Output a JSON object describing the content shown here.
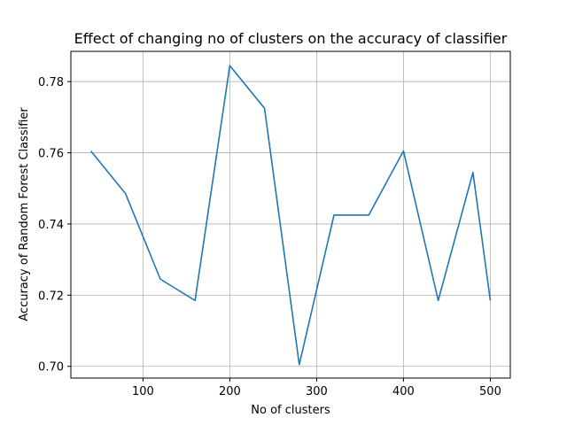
{
  "chart_data": {
    "type": "line",
    "title": "Effect of changing no of clusters on the accuracy of classifier",
    "xlabel": "No of clusters",
    "ylabel": "Accuracy of Random Forest Classifier",
    "x": [
      40,
      80,
      120,
      160,
      200,
      240,
      280,
      320,
      360,
      400,
      440,
      480,
      500
    ],
    "series": [
      {
        "values": [
          0.7605,
          0.7485,
          0.7245,
          0.7185,
          0.7845,
          0.7725,
          0.7005,
          0.7425,
          0.7425,
          0.7605,
          0.7185,
          0.7545,
          0.7185
        ]
      }
    ],
    "xlim": [
      17,
      523
    ],
    "ylim": [
      0.6967,
      0.7885
    ],
    "xticks": [
      100,
      200,
      300,
      400,
      500
    ],
    "yticks": [
      0.7,
      0.72,
      0.74,
      0.76,
      0.78
    ],
    "xtick_labels": [
      "100",
      "200",
      "300",
      "400",
      "500"
    ],
    "ytick_labels": [
      "0.70",
      "0.72",
      "0.74",
      "0.76",
      "0.78"
    ],
    "grid": true,
    "line_color": "#1f77b4",
    "grid_color": "#b0b0b0"
  }
}
